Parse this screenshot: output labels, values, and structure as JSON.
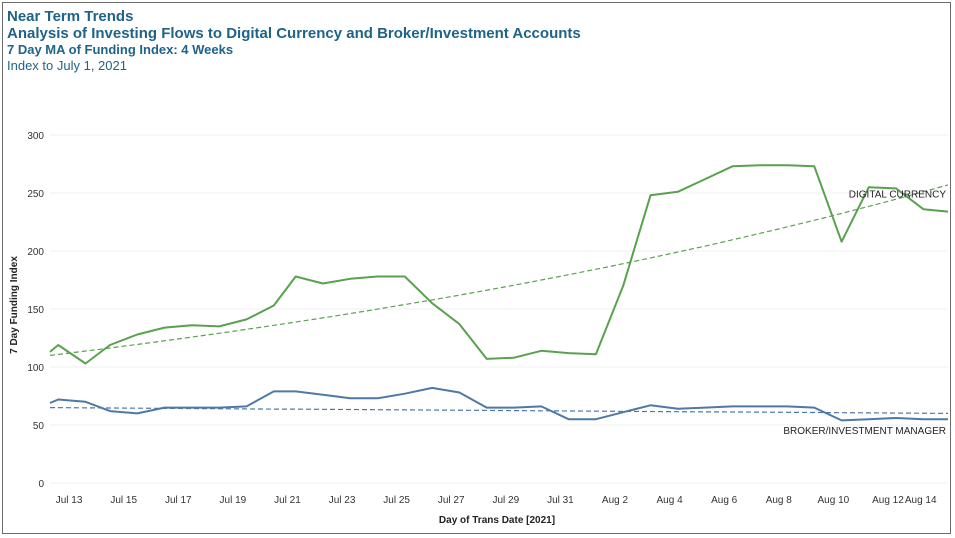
{
  "header": {
    "title": "Near Term Trends",
    "subtitle": "Analysis of Investing Flows to Digital Currency and Broker/Investment Accounts",
    "metric": "7 Day MA of Funding Index: 4 Weeks",
    "note": "Index to July 1, 2021"
  },
  "chart_data": {
    "type": "line",
    "xlabel": "Day of Trans Date [2021]",
    "ylabel": "7 Day Funding Index",
    "ylim": [
      0,
      300
    ],
    "yticks": [
      0,
      50,
      100,
      150,
      200,
      250,
      300
    ],
    "xlim": [
      12.3,
      45.2
    ],
    "xticks": [
      {
        "label": "Jul 13",
        "x": 13
      },
      {
        "label": "Jul 15",
        "x": 15
      },
      {
        "label": "Jul 17",
        "x": 17
      },
      {
        "label": "Jul 19",
        "x": 19
      },
      {
        "label": "Jul 21",
        "x": 21
      },
      {
        "label": "Jul 23",
        "x": 23
      },
      {
        "label": "Jul 25",
        "x": 25
      },
      {
        "label": "Jul 27",
        "x": 27
      },
      {
        "label": "Jul 29",
        "x": 29
      },
      {
        "label": "Jul 31",
        "x": 31
      },
      {
        "label": "Aug 2",
        "x": 33
      },
      {
        "label": "Aug 4",
        "x": 35
      },
      {
        "label": "Aug 6",
        "x": 37
      },
      {
        "label": "Aug 8",
        "x": 39
      },
      {
        "label": "Aug 10",
        "x": 41
      },
      {
        "label": "Aug 12",
        "x": 43
      },
      {
        "label": "Aug 14",
        "x": 44.2
      }
    ],
    "grid": true,
    "series": [
      {
        "name": "DIGITAL CURRENCY",
        "color": "#59a14f",
        "x": [
          12.3,
          12.6,
          13.6,
          14.5,
          15.5,
          16.5,
          17.5,
          18.5,
          19.5,
          20.5,
          21.3,
          22.3,
          23.3,
          24.3,
          25.3,
          26.3,
          27.3,
          28.3,
          29.3,
          30.3,
          31.3,
          32.3,
          33.3,
          34.3,
          35.3,
          36.3,
          37.3,
          38.3,
          39.3,
          40.3,
          41.3,
          42.3,
          43.3,
          44.3,
          45.2
        ],
        "values": [
          113,
          119,
          103,
          119,
          128,
          134,
          136,
          135,
          141,
          153,
          178,
          172,
          176,
          178,
          178,
          155,
          137,
          107,
          108,
          114,
          112,
          111,
          170,
          248,
          251,
          262,
          273,
          274,
          274,
          273,
          208,
          255,
          254,
          236,
          234
        ]
      },
      {
        "name": "BROKER/INVESTMENT MANAGER",
        "color": "#4e79a7",
        "x": [
          12.3,
          12.6,
          13.6,
          14.5,
          15.5,
          16.5,
          17.5,
          18.5,
          19.5,
          20.5,
          21.3,
          22.3,
          23.3,
          24.3,
          25.3,
          26.3,
          27.3,
          28.3,
          29.3,
          30.3,
          31.3,
          32.3,
          33.3,
          34.3,
          35.3,
          36.3,
          37.3,
          38.3,
          39.3,
          40.3,
          41.3,
          42.3,
          43.3,
          44.3,
          45.2
        ],
        "values": [
          69,
          72,
          70,
          62,
          60,
          65,
          65,
          65,
          66,
          79,
          79,
          76,
          73,
          73,
          77,
          82,
          78,
          65,
          65,
          66,
          55,
          55,
          61,
          67,
          64,
          65,
          66,
          66,
          66,
          65,
          54,
          55,
          56,
          55,
          55
        ]
      }
    ],
    "trendlines": [
      {
        "series": "DIGITAL CURRENCY",
        "color": "#59a14f",
        "kind": "exponential",
        "start": 110,
        "end": 257
      },
      {
        "series": "BROKER/INVESTMENT MANAGER",
        "color": "#4e79a7",
        "kind": "linear",
        "start": 65,
        "end": 60
      }
    ]
  }
}
